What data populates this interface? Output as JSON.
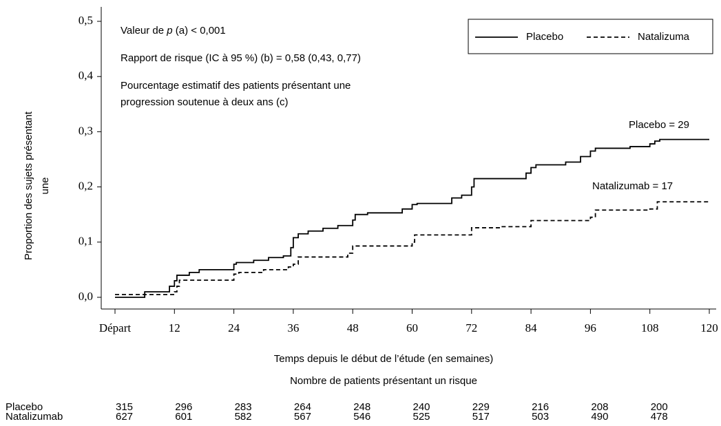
{
  "chart_data": {
    "type": "line",
    "step": true,
    "x_label": "Temps depuis le début de l’étude (en semaines)",
    "y_label": [
      "Proportion des sujets présentant",
      "une"
    ],
    "annotations": {
      "p_value": {
        "prefix": "Valeur de ",
        "italic": "p",
        "suffix": " (a) < 0,001"
      },
      "lines": [
        "Rapport de risque (IC à 95 %) (b) = 0,58 (0,43, 0,77)",
        "Pourcentage estimatif des patients présentant une",
        "progression soutenue à deux ans (c)"
      ],
      "end_labels": [
        "Placebo = 29",
        "Natalizumab = 17"
      ]
    },
    "xlim": [
      0,
      120
    ],
    "xticks": [
      {
        "value": 0,
        "label": "Départ"
      },
      12,
      24,
      36,
      48,
      60,
      72,
      84,
      96,
      108,
      120
    ],
    "ylim": [
      0,
      0.5
    ],
    "yticks": [
      {
        "value": 0,
        "label": "0,0"
      },
      {
        "value": 0.1,
        "label": "0,1"
      },
      {
        "value": 0.2,
        "label": "0,2"
      },
      {
        "value": 0.3,
        "label": "0,3"
      },
      {
        "value": 0.4,
        "label": "0,4"
      },
      {
        "value": 0.5,
        "label": "0,5"
      }
    ],
    "legend": "upper right",
    "series": [
      {
        "name": "Placebo",
        "color": "#000000",
        "dash": "none",
        "x": [
          0,
          6,
          11,
          12,
          12.5,
          15,
          17,
          24,
          24.5,
          28,
          31,
          34,
          35.5,
          36,
          37,
          39,
          42,
          45,
          48,
          48.5,
          51,
          58,
          60,
          61,
          68,
          70,
          72,
          72.5,
          83,
          84,
          85,
          91,
          94,
          96,
          97,
          104,
          108,
          109,
          110,
          120
        ],
        "values": [
          0,
          0.01,
          0.02,
          0.03,
          0.04,
          0.045,
          0.05,
          0.06,
          0.063,
          0.067,
          0.072,
          0.075,
          0.09,
          0.108,
          0.115,
          0.12,
          0.125,
          0.13,
          0.14,
          0.15,
          0.153,
          0.16,
          0.168,
          0.17,
          0.18,
          0.185,
          0.2,
          0.215,
          0.225,
          0.235,
          0.24,
          0.245,
          0.255,
          0.265,
          0.27,
          0.273,
          0.278,
          0.283,
          0.286,
          0.286
        ]
      },
      {
        "name": "Natalizuma",
        "color": "#000000",
        "dash": "6,4",
        "x": [
          0,
          11,
          12,
          12.5,
          13,
          24,
          25,
          30,
          35,
          36,
          37,
          47,
          48,
          60,
          60.5,
          72,
          78,
          84,
          96,
          97,
          108,
          109.5,
          120
        ],
        "values": [
          0.005,
          0.005,
          0.01,
          0.02,
          0.031,
          0.042,
          0.045,
          0.05,
          0.055,
          0.06,
          0.073,
          0.08,
          0.093,
          0.1,
          0.113,
          0.126,
          0.128,
          0.139,
          0.145,
          0.158,
          0.16,
          0.173,
          0.173
        ]
      }
    ]
  },
  "risk_table": {
    "title": "Nombre de patients présentant un risque",
    "rows": [
      {
        "label": "Placebo",
        "values": [
          "315",
          "296",
          "283",
          "264",
          "248",
          "240",
          "229",
          "216",
          "208",
          "200"
        ]
      },
      {
        "label": "Natalizumab",
        "values": [
          "627",
          "601",
          "582",
          "567",
          "546",
          "525",
          "517",
          "503",
          "490",
          "478"
        ]
      }
    ]
  }
}
